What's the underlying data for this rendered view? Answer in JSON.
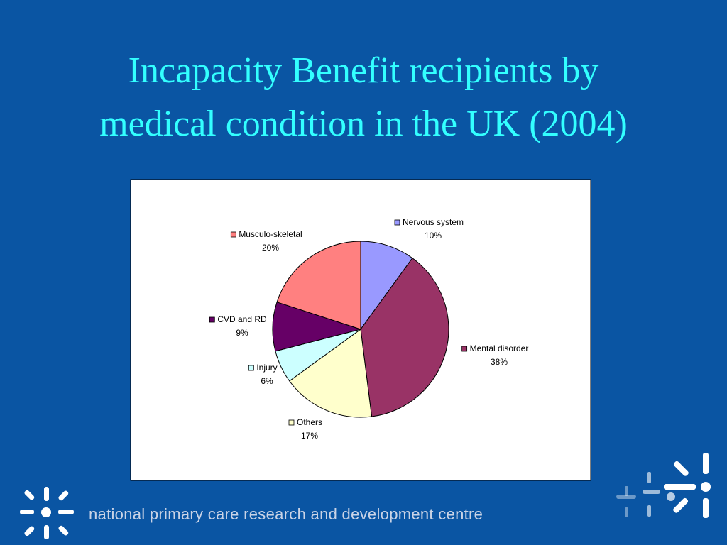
{
  "chart_data": {
    "type": "pie",
    "title": [
      "Incapacity Benefit recipients by",
      "medical condition in the UK (2004)"
    ],
    "categories": [
      "Nervous system",
      "Mental disorder",
      "Others",
      "Injury",
      "CVD and RD",
      "Musculo-skeletal"
    ],
    "values": [
      10,
      38,
      17,
      6,
      9,
      20
    ],
    "value_labels": [
      "10%",
      "38%",
      "17%",
      "6%",
      "9%",
      "20%"
    ],
    "colors": [
      "#9999ff",
      "#993366",
      "#ffffcc",
      "#ccffff",
      "#660066",
      "#ff8080"
    ]
  },
  "footer": {
    "text": "national primary care research and development centre"
  }
}
